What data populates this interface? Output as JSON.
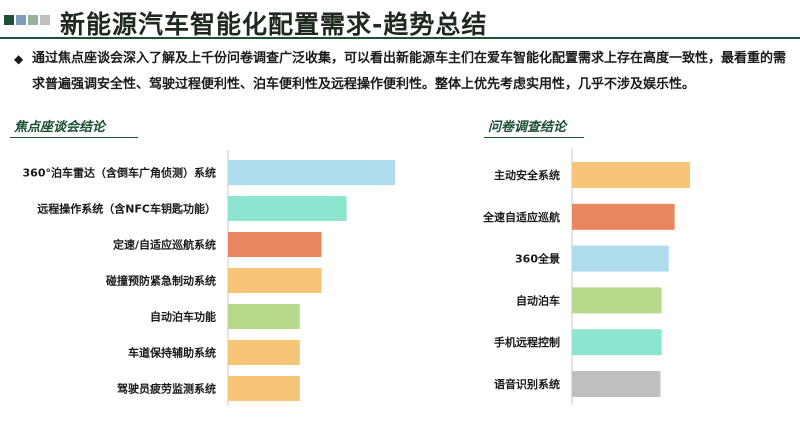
{
  "header": {
    "title": "新能源汽车智能化配置需求-趋势总结",
    "squares": [
      "#1c5233",
      "#7f9cbd",
      "#97b29a",
      "#bfbfbf"
    ]
  },
  "summary": {
    "bullet": "◆",
    "text": "通过焦点座谈会深入了解及上千份问卷调查广泛收集，可以看出新能源车主们在爱车智能化配置需求上存在高度一致性，最看重的需求普遍强调安全性、驾驶过程便利性、泊车便利性及远程操作便利性。整体上优先考虑实用性，几乎不涉及娱乐性。"
  },
  "chart_data": [
    {
      "type": "bar",
      "orientation": "horizontal",
      "title": "焦点座谈会结论",
      "categories": [
        "360°泊车雷达（含倒车广角侦测）系统",
        "远程操作系统（含NFC车钥匙功能）",
        "定速/自适应巡航系统",
        "碰撞预防紧急制动系统",
        "自动泊车功能",
        "车道保持辅助系统",
        "驾驶员疲劳监测系统"
      ],
      "values": [
        100,
        71,
        56,
        56,
        43,
        43,
        43
      ],
      "colors": [
        "#aedcec",
        "#8ee5cf",
        "#e8875f",
        "#f6c577",
        "#b6d98b",
        "#f6c577",
        "#f6c577"
      ]
    },
    {
      "type": "bar",
      "orientation": "horizontal",
      "title": "问卷调查结论",
      "categories": [
        "主动安全系统",
        "全速自适应巡航",
        "360全景",
        "自动泊车",
        "手机远程控制",
        "语音识别系统"
      ],
      "values": [
        100,
        87,
        82,
        76,
        76,
        75
      ],
      "colors": [
        "#f6c577",
        "#e8875f",
        "#aedcec",
        "#b6d98b",
        "#8ee5cf",
        "#bfbfbf"
      ]
    }
  ]
}
